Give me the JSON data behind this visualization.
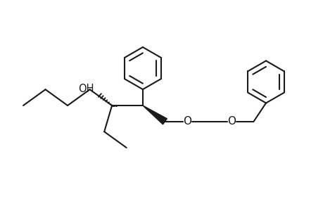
{
  "background": "#ffffff",
  "line_color": "#1a1a1a",
  "line_width": 1.5,
  "figsize": [
    4.6,
    3.0
  ],
  "dpi": 100,
  "xlim": [
    0,
    11
  ],
  "ylim": [
    0,
    7
  ]
}
